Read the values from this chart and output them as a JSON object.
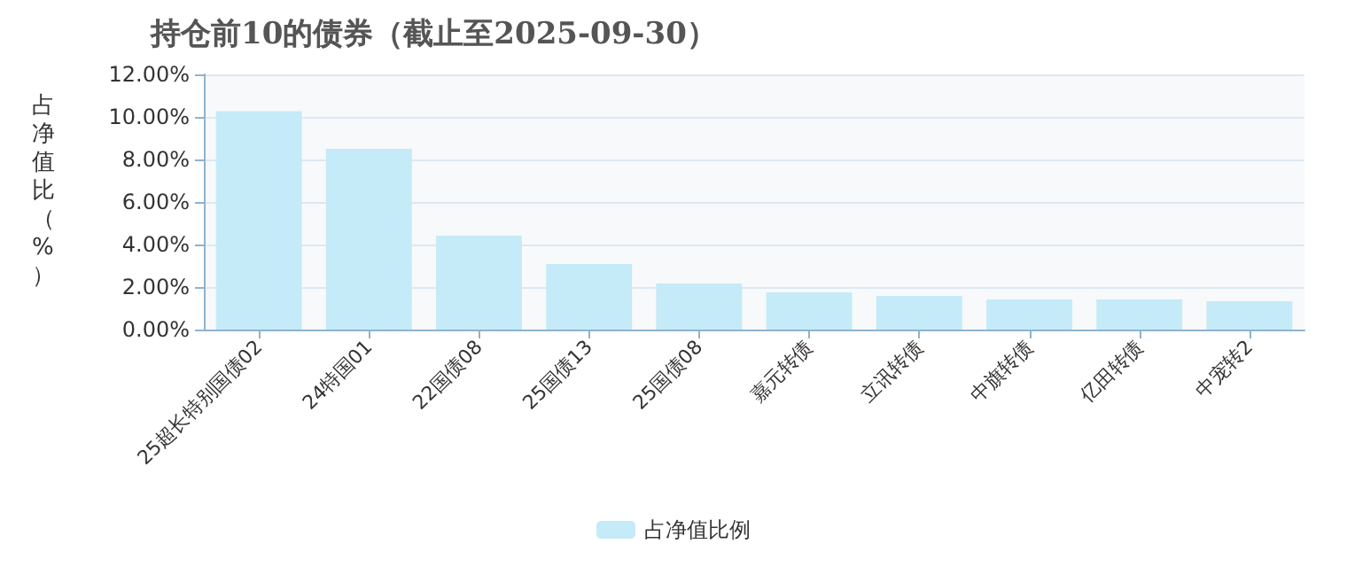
{
  "chart_data": {
    "type": "bar",
    "title": "持仓前10的债券（截止至2025-09-30）",
    "ylabel": "占净值比（%）",
    "categories": [
      "25超长特别国债02",
      "24特国01",
      "22国债08",
      "25国债13",
      "25国债08",
      "嘉元转债",
      "立讯转债",
      "中旗转债",
      "亿田转债",
      "中宠转2"
    ],
    "series": [
      {
        "name": "占净值比例",
        "color": "#c4ebf7",
        "values": [
          10.27,
          8.5,
          4.42,
          3.08,
          2.17,
          1.75,
          1.58,
          1.42,
          1.42,
          1.33
        ]
      }
    ],
    "ylim": [
      0,
      12
    ],
    "yticks": [
      {
        "value": 0,
        "label": "0.00%"
      },
      {
        "value": 2,
        "label": "2.00%"
      },
      {
        "value": 4,
        "label": "4.00%"
      },
      {
        "value": 6,
        "label": "6.00%"
      },
      {
        "value": 8,
        "label": "8.00%"
      },
      {
        "value": 10,
        "label": "10.00%"
      },
      {
        "value": 12,
        "label": "12.00%"
      }
    ],
    "grid": "y",
    "legend": "bottom"
  }
}
